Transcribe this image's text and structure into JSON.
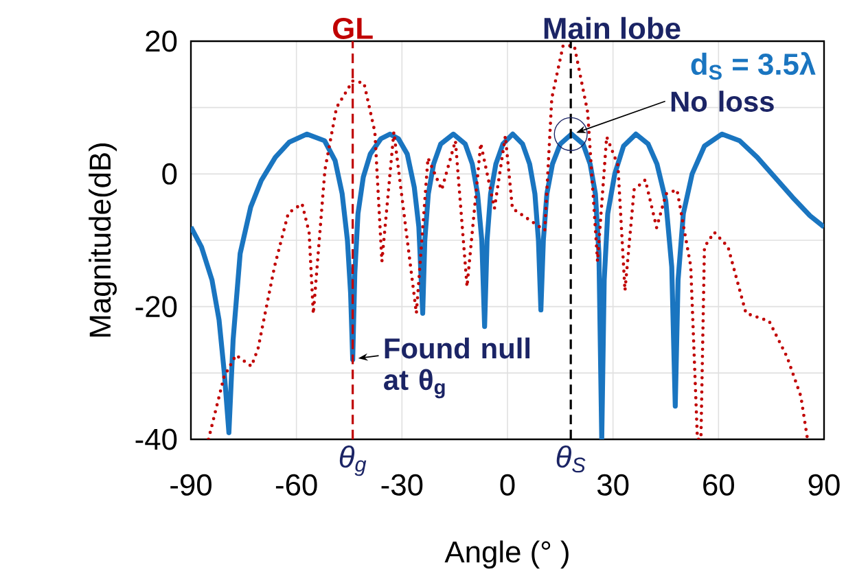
{
  "chart_data": {
    "type": "line",
    "xlabel": "Angle (° )",
    "ylabel": "Magnitude(dB)",
    "xlim": [
      -90,
      90
    ],
    "ylim": [
      -40,
      20
    ],
    "xticks": [
      -90,
      -60,
      -30,
      0,
      30,
      60,
      90
    ],
    "yticks": [
      -40,
      {
        "value": -30,
        "label": null
      },
      -20,
      {
        "value": -10,
        "label": null
      },
      0,
      {
        "value": 10,
        "label": null
      },
      20
    ],
    "grid": true,
    "marker": "none",
    "series": [
      {
        "name": "d$_{S}$ = 3.5λ",
        "color": "#1a75c0",
        "line_style": "solid",
        "x": [
          -90,
          -87,
          -84,
          -82,
          -80.5,
          -79.2,
          -78,
          -76,
          -73,
          -70,
          -66,
          -62,
          -57,
          -52,
          -49,
          -47,
          -45.5,
          -44.6,
          -44,
          -43.4,
          -42.5,
          -41,
          -39,
          -36,
          -33.4,
          -31,
          -28.5,
          -26.5,
          -25.2,
          -24.1,
          -23.5,
          -22.5,
          -21,
          -19,
          -15.4,
          -12,
          -10,
          -8.5,
          -7.3,
          -6.5,
          -5.8,
          -4.8,
          -3.3,
          -1.3,
          1.5,
          4.3,
          6.3,
          7.8,
          8.8,
          9.5,
          10.2,
          11.2,
          12.8,
          15,
          18.2,
          21.5,
          23.5,
          25,
          26,
          26.8,
          27.5,
          28.5,
          30.5,
          33,
          36.5,
          40,
          42.5,
          45,
          46.7,
          47.7,
          48.5,
          50,
          52.5,
          56,
          61,
          66,
          71,
          76,
          81,
          86,
          90
        ],
        "values": [
          -8,
          -11,
          -16,
          -22,
          -30,
          -39,
          -25,
          -12,
          -5,
          -1,
          2.5,
          4.8,
          6,
          5,
          2,
          -3,
          -10,
          -18,
          -28,
          -15,
          -6,
          -0.5,
          3,
          5.3,
          6,
          5.3,
          3,
          -2,
          -8,
          -21,
          -10,
          -3,
          1.5,
          4.5,
          6,
          4.5,
          1.5,
          -3,
          -10,
          -23,
          -10,
          -3,
          1.5,
          4.5,
          6,
          4.5,
          1.5,
          -3,
          -10,
          -20.5,
          -10,
          -3,
          1.5,
          4.5,
          6,
          4.5,
          1.5,
          -3,
          -12,
          -40,
          -16,
          -6,
          0,
          4.2,
          6,
          4.5,
          1.5,
          -4,
          -14,
          -35,
          -16,
          -6,
          0,
          4.2,
          6,
          5,
          2.5,
          -0.5,
          -3.5,
          -6.3,
          -8
        ]
      },
      {
        "color": "#c00000",
        "line_style": "dotted",
        "x": [
          -85,
          -80.6,
          -77.2,
          -72.8,
          -70.9,
          -66.2,
          -62.3,
          -58.4,
          -56.4,
          -55.2,
          -51.9,
          -48.6,
          -44,
          -40.8,
          -37.7,
          -35.7,
          -32.3,
          -25.9,
          -22.6,
          -18.7,
          -14.8,
          -11.5,
          -7.6,
          -3.7,
          -0.6,
          1.4,
          10.6,
          12.6,
          15.8,
          19,
          22.8,
          25.6,
          28.2,
          31.4,
          33.4,
          36,
          39.2,
          42.4,
          45.1,
          48.2,
          52.1,
          54,
          55,
          56,
          58.8,
          62.7,
          67.8,
          74.4,
          79.5,
          83.4,
          85.3
        ],
        "values": [
          -40,
          -30.6,
          -27.3,
          -29,
          -26.3,
          -13.9,
          -5.9,
          -4.5,
          -8.8,
          -21.1,
          0.6,
          10,
          14,
          13.7,
          6.3,
          -13.2,
          6.3,
          -21,
          2.4,
          -2.4,
          5,
          -17,
          4.6,
          -5.2,
          5.7,
          -5.2,
          -8.5,
          11.4,
          19.3,
          19.3,
          9.3,
          -13.2,
          5.6,
          1.3,
          -17.6,
          -2.4,
          -0.9,
          -8.1,
          -3,
          -2.4,
          -13.9,
          -40,
          -40,
          -11,
          -8.8,
          -11,
          -21,
          -22.2,
          -27.6,
          -33.5,
          -40
        ]
      }
    ],
    "ref_lines": [
      {
        "axis": "x",
        "value": -44,
        "label": "GL",
        "color": "#c00000",
        "line_style": "dashed"
      },
      {
        "axis": "x",
        "value": 18,
        "label": "Main lobe",
        "color": "#000000",
        "line_style": "dashed"
      }
    ],
    "annotations": [
      "θ$_{g}$",
      "θ$_{S}$",
      {
        "text": "Found null at θ$_{g}$",
        "x": -44,
        "y": -28
      },
      {
        "text": "No loss",
        "x": 18,
        "y": 6
      }
    ]
  }
}
